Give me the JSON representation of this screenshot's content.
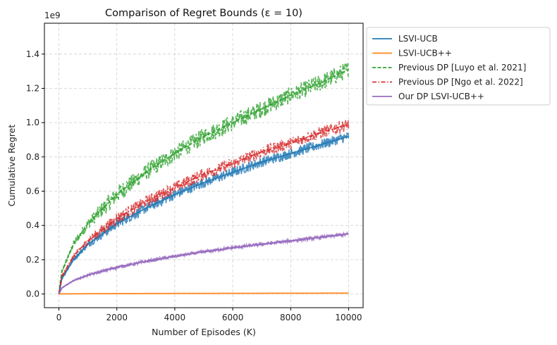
{
  "chart_data": {
    "type": "line",
    "title": "Comparison of Regret Bounds (ε = 10)",
    "xlabel": "Number of Episodes (K)",
    "ylabel": "Cumulative Regret",
    "y_multiplier_label": "1e9",
    "xlim": [
      -500,
      10500
    ],
    "ylim": [
      -0.08,
      1.58
    ],
    "x_ticks": [
      0,
      2000,
      4000,
      6000,
      8000,
      10000
    ],
    "x_tick_labels": [
      "0",
      "2000",
      "4000",
      "6000",
      "8000",
      "10000"
    ],
    "y_ticks": [
      0.0,
      0.2,
      0.4,
      0.6,
      0.8,
      1.0,
      1.2,
      1.4
    ],
    "y_tick_labels": [
      "0.0",
      "0.2",
      "0.4",
      "0.6",
      "0.8",
      "1.0",
      "1.2",
      "1.4"
    ],
    "grid": true,
    "legend_position": "outside-right",
    "x": [
      0,
      100,
      500,
      1000,
      2000,
      3000,
      4000,
      5000,
      6000,
      7000,
      8000,
      9000,
      10000
    ],
    "series": [
      {
        "name": "LSVI-UCB",
        "color": "#1f77b4",
        "style": "solid",
        "noise": 0.03,
        "values": [
          0.0,
          0.09,
          0.2,
          0.29,
          0.41,
          0.5,
          0.58,
          0.65,
          0.71,
          0.77,
          0.82,
          0.87,
          0.92
        ]
      },
      {
        "name": "LSVI-UCB++",
        "color": "#ff7f0e",
        "style": "solid",
        "noise": 0.0,
        "values": [
          0.0,
          0.0005,
          0.001,
          0.0015,
          0.002,
          0.0025,
          0.003,
          0.0033,
          0.0036,
          0.0039,
          0.0042,
          0.0045,
          0.0048
        ]
      },
      {
        "name": "Previous DP [Luyo et al. 2021]",
        "color": "#2ca02c",
        "style": "dashed",
        "noise": 0.05,
        "values": [
          0.0,
          0.13,
          0.29,
          0.41,
          0.58,
          0.71,
          0.82,
          0.92,
          1.0,
          1.08,
          1.16,
          1.23,
          1.31
        ]
      },
      {
        "name": "Previous DP [Ngo et al. 2022]",
        "color": "#d62728",
        "style": "dashdot",
        "noise": 0.035,
        "values": [
          0.0,
          0.1,
          0.22,
          0.31,
          0.44,
          0.54,
          0.62,
          0.7,
          0.76,
          0.83,
          0.88,
          0.94,
          0.99
        ]
      },
      {
        "name": "Our DP LSVI-UCB++",
        "color": "#9467bd",
        "style": "solid",
        "noise": 0.01,
        "values": [
          0.0,
          0.035,
          0.078,
          0.11,
          0.156,
          0.19,
          0.22,
          0.246,
          0.27,
          0.29,
          0.31,
          0.33,
          0.35
        ]
      }
    ]
  }
}
